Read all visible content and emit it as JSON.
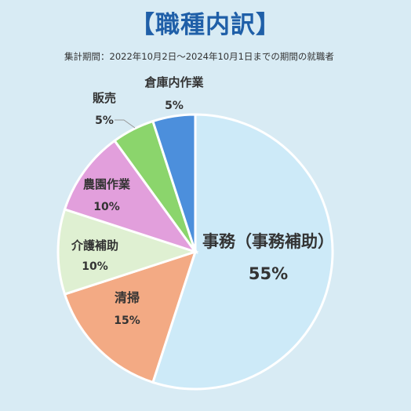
{
  "title": "【職種内訳】",
  "subtitle": "集計期間：2022年10月2日〜2024年10月1日までの期間の就職者",
  "chart_data": {
    "type": "pie",
    "title": "【職種内訳】",
    "subtitle": "集計期間：2022年10月2日〜2024年10月1日までの期間の就職者",
    "slices": [
      {
        "label": "事務（事務補助）",
        "value": 55,
        "value_label": "55%",
        "color": "#cdeaf8"
      },
      {
        "label": "清掃",
        "value": 15,
        "value_label": "15%",
        "color": "#f3aa84"
      },
      {
        "label": "介護補助",
        "value": 10,
        "value_label": "10%",
        "color": "#dff0d2"
      },
      {
        "label": "農園作業",
        "value": 10,
        "value_label": "10%",
        "color": "#e29fdc"
      },
      {
        "label": "販売",
        "value": 5,
        "value_label": "5%",
        "color": "#8bd56c"
      },
      {
        "label": "倉庫内作業",
        "value": 5,
        "value_label": "5%",
        "color": "#4c8fdc"
      }
    ],
    "start_angle": "12 o'clock",
    "direction": "clockwise",
    "legend": "none"
  }
}
